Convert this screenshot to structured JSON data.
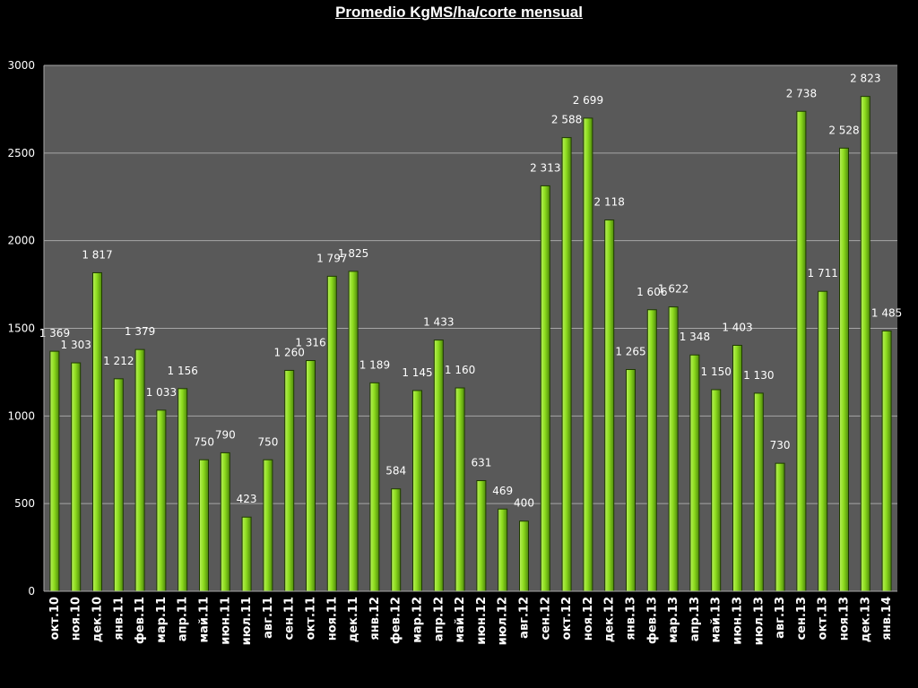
{
  "chart_data": {
    "type": "bar",
    "title": "Promedio KgMS/ha/corte mensual",
    "xlabel": "",
    "ylabel": "",
    "ylim": [
      0,
      3000
    ],
    "yticks": [
      "0",
      "500",
      "1000",
      "1500",
      "2000",
      "2500",
      "3000"
    ],
    "grid": true,
    "legend": "none",
    "categories": [
      "окт.10",
      "ноя.10",
      "дек.10",
      "янв.11",
      "фев.11",
      "мар.11",
      "апр.11",
      "май.11",
      "июн.11",
      "июл.11",
      "авг.11",
      "сен.11",
      "окт.11",
      "ноя.11",
      "дек.11",
      "янв.12",
      "фев.12",
      "мар.12",
      "апр.12",
      "май.12",
      "июн.12",
      "июл.12",
      "авг.12",
      "сен.12",
      "окт.12",
      "ноя.12",
      "дек.12",
      "янв.13",
      "фев.13",
      "мар.13",
      "апр.13",
      "май.13",
      "июн.13",
      "июл.13",
      "авг.13",
      "сен.13",
      "окт.13",
      "ноя.13",
      "дек.13",
      "янв.14"
    ],
    "values": [
      1369,
      1303,
      1817,
      1212,
      1379,
      1033,
      1156,
      750,
      790,
      423,
      750,
      1260,
      1316,
      1797,
      1825,
      1189,
      584,
      1145,
      1433,
      1160,
      631,
      469,
      400,
      2313,
      2588,
      2699,
      2118,
      1265,
      1606,
      1622,
      1348,
      1150,
      1403,
      1130,
      730,
      2738,
      1711,
      2528,
      2823,
      1485
    ],
    "data_labels": [
      "1 369",
      "1 303",
      "1 817",
      "1 212",
      "1 379",
      "1 033",
      "1 156",
      "750",
      "790",
      "423",
      "750",
      "1 260",
      "1 316",
      "1 797",
      "1 825",
      "1 189",
      "584",
      "1 145",
      "1 433",
      "1 160",
      "631",
      "469",
      "400",
      "2 313",
      "2 588",
      "2 699",
      "2 118",
      "1 265",
      "1 606",
      "1 622",
      "1 348",
      "1 150",
      "1 403",
      "1 130",
      "730",
      "2 738",
      "1 711",
      "2 528",
      "2 823",
      "1 485"
    ],
    "colors": {
      "background": "#000000",
      "plot_area": "#595959",
      "gridline": "#a6a6a6",
      "bar_fill_light": "#b7f05a",
      "bar_fill_mid": "#8ddc1e",
      "bar_fill_dark": "#4f8a0b",
      "bar_outline": "#1e3a00",
      "text": "#ffffff"
    }
  }
}
